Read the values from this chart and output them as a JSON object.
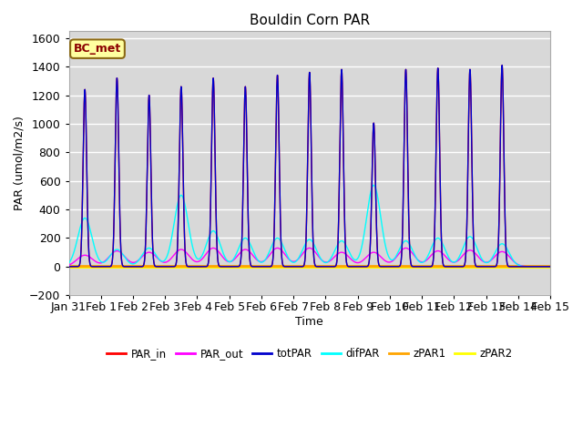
{
  "title": "Bouldin Corn PAR",
  "xlabel": "Time",
  "ylabel": "PAR (umol/m2/s)",
  "ylim": [
    -200,
    1650
  ],
  "yticks": [
    -200,
    0,
    200,
    400,
    600,
    800,
    1000,
    1200,
    1400,
    1600
  ],
  "annotation_text": "BC_met",
  "series_colors": {
    "PAR_in": "#ff0000",
    "PAR_out": "#ff00ff",
    "totPAR": "#0000cc",
    "difPAR": "#00ffff",
    "zPAR1": "#ffa500",
    "zPAR2": "#ffff00"
  },
  "background_color": "#d8d8d8",
  "grid_color": "#ffffff",
  "day_peaks": [
    1240,
    1320,
    1200,
    1260,
    1320,
    1260,
    1340,
    1360,
    1380,
    1005,
    1380,
    1390,
    1380,
    1410
  ],
  "difPAR_peaks": [
    340,
    120,
    130,
    500,
    250,
    200,
    200,
    190,
    180,
    570,
    180,
    200,
    210,
    160
  ],
  "PAR_out_peaks": [
    80,
    110,
    100,
    120,
    130,
    120,
    130,
    130,
    100,
    100,
    130,
    110,
    115,
    105
  ]
}
